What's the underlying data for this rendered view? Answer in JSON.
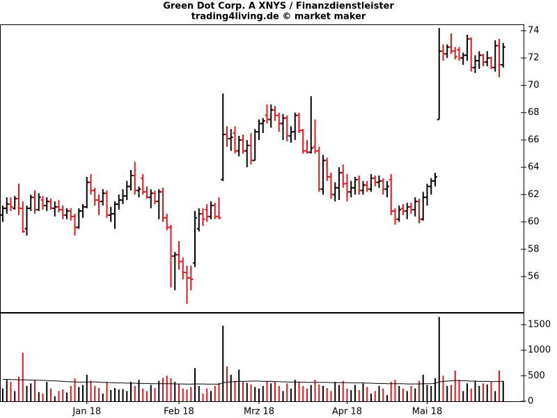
{
  "chart_data": {
    "type": "ohlc",
    "title": "Green Dot Corp. A XNYS / Finanzdienstleister",
    "subtitle": "trading4living.de © market maker",
    "up_color": "#000000",
    "down_color": "#e8141c",
    "ma_color": "#000000",
    "categories": [
      null,
      null,
      null,
      null,
      null,
      null,
      null,
      null,
      null,
      null,
      null,
      null,
      null,
      null,
      null,
      null,
      null,
      null,
      null,
      null,
      null,
      "Jan 18",
      null,
      null,
      null,
      null,
      null,
      null,
      null,
      null,
      null,
      null,
      null,
      null,
      null,
      null,
      null,
      null,
      null,
      null,
      null,
      null,
      null,
      null,
      "Feb 18",
      null,
      null,
      null,
      null,
      null,
      null,
      null,
      null,
      null,
      null,
      null,
      null,
      null,
      null,
      null,
      null,
      null,
      null,
      null,
      "Mrz 18",
      null,
      null,
      null,
      null,
      null,
      null,
      null,
      null,
      null,
      null,
      null,
      null,
      null,
      null,
      null,
      null,
      null,
      null,
      null,
      null,
      null,
      "Apr 18",
      null,
      null,
      null,
      null,
      null,
      null,
      null,
      null,
      null,
      null,
      null,
      null,
      null,
      null,
      null,
      null,
      null,
      null,
      null,
      "Mai 18",
      null,
      null,
      null,
      null,
      null,
      null,
      null,
      null,
      null,
      null,
      null,
      null,
      null,
      null,
      null,
      null,
      null,
      null,
      null
    ],
    "open": [
      60.5,
      61.0,
      61.3,
      61.0,
      61.7,
      61.0,
      59.5,
      61.0,
      61.8,
      60.9,
      61.6,
      61.2,
      61.5,
      61.0,
      61.1,
      60.9,
      60.5,
      60.8,
      60.4,
      59.6,
      60.8,
      61.1,
      62.9,
      62.3,
      61.6,
      61.5,
      62.1,
      60.5,
      60.6,
      61.3,
      61.6,
      61.9,
      62.6,
      63.4,
      62.3,
      63.2,
      62.2,
      61.8,
      62.1,
      61.5,
      62.2,
      60.3,
      59.6,
      57.5,
      57.6,
      57.1,
      56.3,
      55.9,
      57.0,
      59.5,
      60.6,
      60.9,
      60.4,
      61.2,
      60.4,
      63.1,
      66.4,
      66.1,
      66.5,
      65.2,
      66.0,
      65.2,
      65.6,
      64.5,
      66.6,
      67.2,
      67.8,
      67.5,
      68.2,
      67.8,
      67.2,
      67.6,
      66.3,
      66.6,
      67.8,
      66.7,
      65.2,
      65.1,
      65.5,
      65.2,
      62.4,
      64.5,
      63.3,
      62.0,
      62.5,
      63.6,
      62.8,
      62.2,
      62.5,
      63.1,
      62.3,
      62.7,
      62.4,
      63.2,
      62.9,
      63.0,
      62.4,
      63.1,
      60.8,
      60.2,
      61.0,
      60.8,
      61.1,
      60.9,
      61.5,
      60.2,
      61.8,
      62.6,
      63.0,
      67.5,
      72.5,
      72.3,
      72.8,
      72.5,
      72.6,
      72.0,
      72.2,
      73.4,
      71.3,
      71.8,
      72.2,
      71.7,
      72.0,
      71.3,
      72.9,
      71.5
    ],
    "high": [
      61.2,
      61.8,
      61.8,
      61.9,
      62.8,
      61.5,
      61.2,
      62.0,
      62.3,
      62.1,
      61.9,
      61.8,
      61.7,
      61.5,
      61.6,
      61.2,
      61.0,
      61.0,
      60.6,
      61.0,
      61.3,
      63.3,
      63.5,
      62.5,
      62.0,
      62.4,
      62.3,
      61.1,
      61.5,
      62.0,
      62.4,
      63.0,
      63.8,
      64.4,
      62.6,
      63.5,
      62.6,
      62.4,
      62.3,
      62.4,
      62.5,
      60.6,
      59.8,
      57.8,
      58.6,
      57.4,
      56.8,
      56.8,
      60.8,
      61.0,
      61.0,
      61.3,
      61.5,
      61.4,
      61.8,
      69.4,
      67.0,
      66.8,
      67.0,
      66.3,
      66.4,
      66.0,
      66.5,
      66.8,
      67.5,
      67.6,
      68.6,
      68.6,
      68.5,
      68.0,
      67.9,
      67.8,
      67.0,
      68.0,
      68.0,
      66.8,
      66.0,
      69.2,
      67.5,
      65.5,
      64.9,
      64.7,
      63.6,
      62.9,
      64.0,
      64.2,
      63.5,
      63.0,
      63.3,
      63.4,
      63.0,
      63.0,
      63.5,
      63.4,
      63.4,
      63.2,
      63.0,
      63.5,
      61.0,
      61.2,
      61.3,
      61.4,
      61.4,
      61.8,
      61.7,
      62.2,
      62.8,
      63.2,
      63.6,
      74.2,
      73.0,
      73.0,
      73.8,
      72.8,
      72.8,
      72.4,
      73.7,
      73.5,
      72.2,
      72.5,
      72.3,
      72.5,
      72.1,
      73.3,
      73.4,
      73.1
    ],
    "low": [
      60.0,
      60.6,
      60.8,
      60.9,
      60.5,
      59.2,
      59.0,
      60.8,
      60.6,
      60.8,
      60.9,
      60.8,
      60.9,
      60.4,
      60.7,
      60.2,
      60.2,
      60.1,
      59.0,
      59.5,
      60.3,
      61.0,
      62.0,
      61.2,
      60.5,
      61.2,
      60.3,
      60.0,
      59.5,
      60.9,
      61.3,
      61.6,
      62.3,
      62.0,
      61.8,
      62.0,
      61.7,
      61.0,
      61.3,
      60.2,
      60.0,
      59.4,
      55.2,
      55.0,
      56.5,
      55.8,
      54.0,
      55.0,
      56.7,
      59.3,
      59.7,
      60.0,
      60.2,
      60.2,
      60.2,
      63.0,
      65.5,
      65.2,
      65.0,
      64.8,
      65.0,
      64.0,
      64.2,
      64.5,
      66.0,
      66.5,
      67.2,
      66.9,
      67.4,
      66.6,
      66.0,
      65.9,
      65.8,
      66.0,
      66.5,
      65.0,
      65.0,
      65.0,
      65.0,
      62.2,
      62.0,
      63.0,
      61.7,
      61.5,
      61.6,
      62.5,
      61.5,
      61.8,
      62.0,
      62.0,
      62.0,
      62.2,
      62.2,
      62.6,
      62.5,
      62.0,
      61.8,
      60.5,
      59.8,
      60.0,
      60.5,
      60.2,
      60.6,
      60.4,
      59.9,
      60.1,
      61.2,
      62.0,
      62.6,
      67.5,
      71.8,
      72.0,
      72.3,
      71.9,
      71.8,
      71.5,
      71.8,
      71.0,
      70.9,
      71.2,
      71.4,
      71.4,
      71.2,
      71.0,
      70.6,
      71.3
    ],
    "close": [
      61.0,
      61.3,
      61.1,
      61.7,
      61.0,
      59.3,
      61.0,
      61.8,
      60.9,
      61.8,
      61.2,
      61.5,
      61.0,
      61.1,
      60.9,
      60.5,
      60.8,
      60.4,
      59.6,
      60.8,
      61.1,
      62.9,
      62.3,
      61.6,
      61.5,
      62.1,
      60.5,
      60.6,
      61.3,
      61.6,
      61.9,
      62.6,
      63.4,
      62.3,
      62.4,
      62.2,
      61.8,
      62.1,
      61.5,
      62.2,
      60.3,
      59.6,
      57.5,
      57.6,
      57.1,
      56.3,
      55.9,
      55.8,
      60.3,
      60.6,
      60.2,
      60.4,
      61.2,
      60.4,
      60.3,
      66.4,
      66.1,
      66.2,
      65.2,
      66.0,
      65.2,
      65.6,
      64.5,
      66.6,
      67.2,
      67.4,
      67.5,
      68.2,
      67.8,
      67.2,
      67.6,
      66.3,
      66.6,
      67.8,
      66.7,
      65.2,
      65.1,
      65.4,
      65.2,
      62.4,
      64.5,
      63.3,
      62.0,
      62.5,
      63.6,
      62.8,
      62.2,
      62.5,
      63.1,
      62.3,
      62.7,
      62.4,
      63.2,
      62.9,
      63.0,
      62.4,
      62.6,
      60.8,
      60.2,
      60.9,
      60.8,
      61.1,
      60.9,
      61.5,
      60.2,
      61.8,
      62.6,
      63.0,
      63.3,
      72.5,
      72.3,
      72.8,
      72.5,
      72.1,
      72.0,
      72.2,
      73.4,
      71.3,
      71.8,
      72.2,
      71.7,
      72.0,
      71.3,
      72.9,
      71.5,
      72.8
    ],
    "volume": [
      250,
      420,
      380,
      200,
      480,
      950,
      300,
      350,
      420,
      180,
      150,
      380,
      250,
      100,
      200,
      230,
      170,
      300,
      450,
      280,
      320,
      520,
      400,
      300,
      260,
      150,
      380,
      220,
      260,
      230,
      240,
      200,
      380,
      300,
      420,
      250,
      200,
      320,
      260,
      400,
      460,
      500,
      450,
      380,
      340,
      250,
      230,
      280,
      650,
      300,
      150,
      250,
      200,
      300,
      360,
      1480,
      680,
      520,
      400,
      620,
      380,
      360,
      330,
      280,
      250,
      300,
      400,
      350,
      380,
      300,
      200,
      350,
      250,
      420,
      380,
      300,
      250,
      320,
      420,
      330,
      300,
      260,
      200,
      380,
      320,
      400,
      250,
      220,
      320,
      220,
      350,
      280,
      150,
      200,
      300,
      250,
      120,
      380,
      420,
      300,
      250,
      200,
      300,
      250,
      400,
      520,
      320,
      300,
      450,
      1650,
      500,
      300,
      320,
      600,
      420,
      200,
      350,
      250,
      400,
      300,
      350,
      330,
      380,
      200,
      600,
      400
    ],
    "volume_ma": [
      430,
      430,
      425,
      425,
      420,
      420,
      420,
      415,
      415,
      410,
      410,
      405,
      400,
      400,
      395,
      390,
      385,
      380,
      380,
      375,
      375,
      375,
      380,
      380,
      375,
      370,
      370,
      365,
      360,
      360,
      360,
      355,
      355,
      355,
      350,
      350,
      350,
      345,
      345,
      345,
      345,
      345,
      345,
      340,
      340,
      340,
      335,
      335,
      340,
      340,
      340,
      335,
      335,
      335,
      335,
      360,
      375,
      380,
      385,
      390,
      390,
      390,
      395,
      395,
      395,
      390,
      390,
      390,
      385,
      385,
      380,
      380,
      375,
      375,
      375,
      375,
      370,
      370,
      370,
      370,
      370,
      370,
      365,
      365,
      365,
      365,
      365,
      360,
      360,
      360,
      360,
      355,
      355,
      350,
      350,
      350,
      345,
      345,
      345,
      345,
      345,
      340,
      340,
      340,
      340,
      345,
      345,
      345,
      350,
      380,
      390,
      395,
      400,
      405,
      405,
      400,
      400,
      395,
      395,
      390,
      390,
      390,
      385,
      385,
      390,
      390
    ],
    "ylim": [
      53.4,
      74.46
    ],
    "yticks": [
      56,
      58,
      60,
      62,
      64,
      66,
      68,
      70,
      72,
      74
    ],
    "volume_ylim": [
      0,
      1718
    ],
    "volume_yticks": [
      0,
      500,
      1000,
      1500
    ]
  }
}
